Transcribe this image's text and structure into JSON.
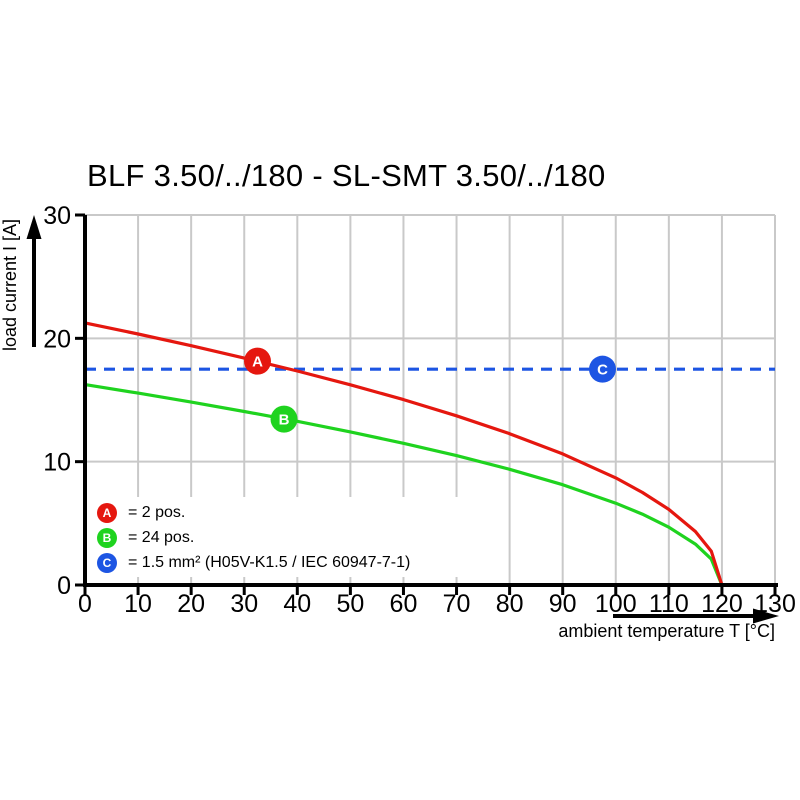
{
  "chart_data": {
    "type": "line",
    "title": "BLF 3.50/../180 - SL-SMT 3.50/../180",
    "xlabel": "ambient temperature T [°C]",
    "ylabel": "load current I [A]",
    "xlim": [
      0,
      130
    ],
    "ylim": [
      0,
      30
    ],
    "x_ticks": [
      0,
      10,
      20,
      30,
      40,
      50,
      60,
      70,
      80,
      90,
      100,
      110,
      120,
      130
    ],
    "y_ticks": [
      0,
      10,
      20,
      30
    ],
    "grid": true,
    "series": [
      {
        "id": "a",
        "name": "A",
        "legend": "= 2 pos.",
        "color": "#e5170f",
        "style": "solid",
        "points": [
          [
            0,
            21.25
          ],
          [
            10,
            20.35
          ],
          [
            20,
            19.4
          ],
          [
            30,
            18.4
          ],
          [
            40,
            17.35
          ],
          [
            50,
            16.23
          ],
          [
            60,
            15.03
          ],
          [
            70,
            13.72
          ],
          [
            80,
            12.27
          ],
          [
            90,
            10.63
          ],
          [
            100,
            8.68
          ],
          [
            105,
            7.51
          ],
          [
            110,
            6.13
          ],
          [
            115,
            4.34
          ],
          [
            118,
            2.74
          ],
          [
            120,
            0
          ]
        ]
      },
      {
        "id": "b",
        "name": "B",
        "legend": "= 24 pos.",
        "color": "#1fd31f",
        "style": "solid",
        "points": [
          [
            0,
            16.25
          ],
          [
            10,
            15.56
          ],
          [
            20,
            14.83
          ],
          [
            30,
            14.07
          ],
          [
            40,
            13.27
          ],
          [
            50,
            12.41
          ],
          [
            60,
            11.49
          ],
          [
            70,
            10.49
          ],
          [
            80,
            9.38
          ],
          [
            90,
            8.13
          ],
          [
            100,
            6.63
          ],
          [
            105,
            5.75
          ],
          [
            110,
            4.69
          ],
          [
            115,
            3.32
          ],
          [
            118,
            2.1
          ],
          [
            120,
            0
          ]
        ]
      },
      {
        "id": "c",
        "name": "C",
        "legend": "= 1.5 mm² (H05V-K1.5 / IEC 60947-7-1)",
        "color": "#1d55e3",
        "style": "dashed",
        "points": [
          [
            0,
            17.5
          ],
          [
            130,
            17.5
          ]
        ]
      }
    ],
    "markers": [
      {
        "label": "A",
        "color": "#e5170f",
        "t": 32.5,
        "i": 18.15
      },
      {
        "label": "B",
        "color": "#1fd31f",
        "t": 37.5,
        "i": 13.45
      },
      {
        "label": "C",
        "color": "#1d55e3",
        "t": 97.5,
        "i": 17.5
      }
    ],
    "legend": {
      "position": "inside-bottom-left",
      "items": [
        {
          "letter": "A",
          "text": "= 2 pos.",
          "color": "#e5170f"
        },
        {
          "letter": "B",
          "text": "= 24 pos.",
          "color": "#1fd31f"
        },
        {
          "letter": "C",
          "text": "= 1.5 mm² (H05V-K1.5 / IEC 60947-7-1)",
          "color": "#1d55e3"
        }
      ]
    }
  },
  "colors": {
    "grid": "#c9c9c9",
    "axis": "#000000",
    "background": "#ffffff",
    "text": "#000000"
  }
}
